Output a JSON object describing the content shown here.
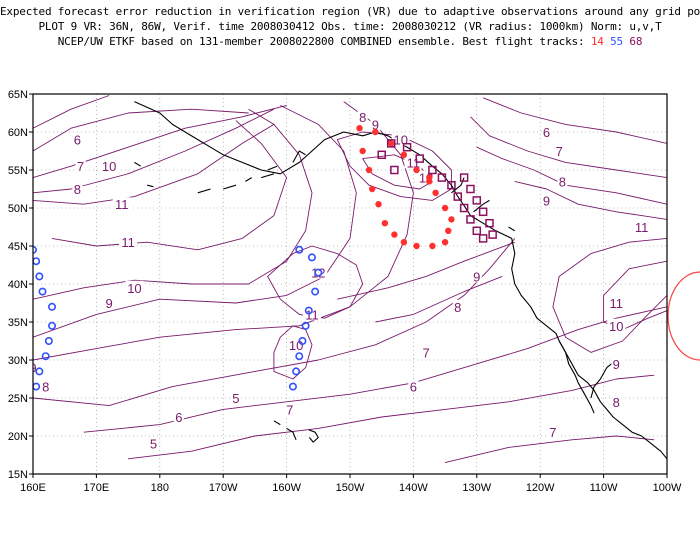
{
  "header": {
    "line1": "Expected forecast error reduction in verification region (VR) due to adaptive observations around any grid point.",
    "line2": "PLOT 9 VR: 36N, 86W, Verif. time 2008030412 Obs. time: 2008030212 (VR radius: 1000km) Norm: u,v,T",
    "line3_prefix": "NCEP/UW ETKF based on 131-member 2008022800 COMBINED ensemble.  Best flight tracks:",
    "track_a": "14",
    "track_b": "55",
    "track_c": "68"
  },
  "map": {
    "lon_range": [
      160,
      260
    ],
    "lat_range": [
      15,
      65
    ],
    "x_ticks": [
      "160E",
      "170E",
      "180",
      "170W",
      "160W",
      "150W",
      "140W",
      "130W",
      "120W",
      "110W",
      "100W"
    ],
    "y_ticks": [
      "15N",
      "20N",
      "25N",
      "30N",
      "35N",
      "40N",
      "45N",
      "50N",
      "55N",
      "60N",
      "65N"
    ],
    "grid": "dotted",
    "contour_color": "#7a1a6a",
    "contour_labels": [
      {
        "text": "6",
        "lon": 167,
        "lat": 59
      },
      {
        "text": "7",
        "lon": 167.5,
        "lat": 55.5
      },
      {
        "text": "8",
        "lon": 167,
        "lat": 52.5
      },
      {
        "text": "10",
        "lon": 172,
        "lat": 55.5
      },
      {
        "text": "11",
        "lon": 174,
        "lat": 50.5
      },
      {
        "text": "8",
        "lon": 148,
        "lat": 62
      },
      {
        "text": "9",
        "lon": 146,
        "lat": 61
      },
      {
        "text": "10",
        "lon": 142,
        "lat": 59
      },
      {
        "text": "11",
        "lon": 140,
        "lat": 56
      },
      {
        "text": "12",
        "lon": 138,
        "lat": 54
      },
      {
        "text": "11",
        "lon": 175,
        "lat": 45.5
      },
      {
        "text": "12",
        "lon": 155,
        "lat": 41.5
      },
      {
        "text": "10",
        "lon": 176,
        "lat": 39.5
      },
      {
        "text": "9",
        "lon": 172,
        "lat": 37.5
      },
      {
        "text": "11",
        "lon": 156,
        "lat": 36
      },
      {
        "text": "10",
        "lon": 158.5,
        "lat": 32
      },
      {
        "text": "9",
        "lon": 160,
        "lat": 29
      },
      {
        "text": "8",
        "lon": 162,
        "lat": 26.5
      },
      {
        "text": "7",
        "lon": 159.5,
        "lat": 23.5
      },
      {
        "text": "5",
        "lon": 192,
        "lat": 25
      },
      {
        "text": "6",
        "lon": 183,
        "lat": 22.5
      },
      {
        "text": "5",
        "lon": 179,
        "lat": 19
      },
      {
        "text": "6",
        "lon": 119,
        "lat": 60
      },
      {
        "text": "7",
        "lon": 117,
        "lat": 57.5
      },
      {
        "text": "8",
        "lon": 116.5,
        "lat": 53.5
      },
      {
        "text": "9",
        "lon": 119,
        "lat": 51
      },
      {
        "text": "11",
        "lon": 104,
        "lat": 47.5
      },
      {
        "text": "9",
        "lon": 130,
        "lat": 41
      },
      {
        "text": "8",
        "lon": 133,
        "lat": 37
      },
      {
        "text": "11",
        "lon": 108,
        "lat": 37.5
      },
      {
        "text": "10",
        "lon": 108,
        "lat": 34.5
      },
      {
        "text": "9",
        "lon": 108,
        "lat": 29.5
      },
      {
        "text": "8",
        "lon": 108,
        "lat": 24.5
      },
      {
        "text": "7",
        "lon": 138,
        "lat": 31
      },
      {
        "text": "6",
        "lon": 140,
        "lat": 26.5
      },
      {
        "text": "7",
        "lon": 118,
        "lat": 20.5
      }
    ],
    "track_colors": {
      "a": "#ff3030",
      "b": "#3050ff",
      "c": "#8a1060"
    },
    "track_a_points": [
      [
        148.5,
        60.5
      ],
      [
        146,
        60
      ],
      [
        143.5,
        58.5
      ],
      [
        141.5,
        57
      ],
      [
        139.5,
        55
      ],
      [
        137.5,
        53.5
      ],
      [
        148,
        57.5
      ],
      [
        147,
        55
      ],
      [
        146.5,
        52.5
      ],
      [
        145.5,
        50.5
      ],
      [
        144.5,
        48
      ],
      [
        143,
        46.5
      ],
      [
        141.5,
        45.5
      ],
      [
        139.5,
        45
      ],
      [
        137,
        45
      ],
      [
        135,
        45.5
      ],
      [
        134.5,
        47
      ],
      [
        134,
        48.5
      ],
      [
        135,
        50
      ],
      [
        136.5,
        52
      ],
      [
        137.5,
        54
      ]
    ],
    "track_b_points": [
      [
        160,
        44.5
      ],
      [
        158,
        44.5
      ],
      [
        156,
        43.5
      ],
      [
        155,
        41.5
      ],
      [
        155.5,
        39
      ],
      [
        156.5,
        36.5
      ],
      [
        157,
        34.5
      ],
      [
        157.5,
        32.5
      ],
      [
        158,
        30.5
      ],
      [
        158.5,
        28.5
      ],
      [
        159,
        26.5
      ],
      [
        160.5,
        26.5
      ],
      [
        161,
        28.5
      ],
      [
        162,
        30.5
      ],
      [
        162.5,
        32.5
      ],
      [
        163,
        34.5
      ],
      [
        163,
        37
      ],
      [
        161.5,
        39
      ],
      [
        161,
        41
      ],
      [
        160.5,
        43
      ]
    ],
    "track_c_points": [
      [
        143.5,
        58.5
      ],
      [
        141,
        58
      ],
      [
        139,
        56.5
      ],
      [
        137,
        55
      ],
      [
        135.5,
        54
      ],
      [
        134,
        53
      ],
      [
        133,
        51.5
      ],
      [
        132,
        50
      ],
      [
        131,
        48.5
      ],
      [
        130,
        47
      ],
      [
        129,
        46
      ],
      [
        127.5,
        46.5
      ],
      [
        128,
        48
      ],
      [
        129,
        49.5
      ],
      [
        130,
        51
      ],
      [
        131,
        52.5
      ],
      [
        132,
        54
      ],
      [
        145,
        57
      ],
      [
        143,
        55
      ]
    ],
    "coastlines": [
      [
        [
          176,
          64
        ],
        [
          180,
          62.5
        ],
        [
          182,
          61
        ],
        [
          186,
          59
        ],
        [
          188,
          58
        ],
        [
          190,
          57
        ],
        [
          193,
          56
        ],
        [
          196,
          55
        ],
        [
          199,
          54.5
        ],
        [
          202,
          56
        ],
        [
          204,
          57.5
        ],
        [
          206,
          59
        ],
        [
          209,
          60
        ],
        [
          212,
          59.5
        ],
        [
          214,
          60
        ],
        [
          216,
          59.5
        ],
        [
          218,
          58.5
        ],
        [
          221,
          57
        ],
        [
          223,
          55.5
        ],
        [
          224.5,
          54.5
        ],
        [
          226,
          53
        ],
        [
          227,
          51.5
        ],
        [
          228,
          50.3
        ],
        [
          229,
          49
        ],
        [
          231,
          48
        ],
        [
          233,
          47
        ],
        [
          235.5,
          46
        ],
        [
          236,
          44
        ],
        [
          235.5,
          42
        ],
        [
          236,
          40
        ],
        [
          237,
          38.5
        ],
        [
          238.5,
          37
        ],
        [
          239.5,
          35.5
        ],
        [
          241,
          34.5
        ],
        [
          242.5,
          33.5
        ],
        [
          243,
          32.5
        ],
        [
          244,
          31
        ],
        [
          245,
          29.5
        ],
        [
          246,
          28
        ],
        [
          247.5,
          27
        ],
        [
          248.5,
          26
        ],
        [
          249.5,
          24.5
        ],
        [
          250.5,
          23.5
        ],
        [
          251.5,
          22.5
        ],
        [
          253,
          21.5
        ],
        [
          254.5,
          20.5
        ],
        [
          256,
          20
        ],
        [
          257.5,
          19
        ],
        [
          259,
          18
        ],
        [
          260,
          17
        ]
      ],
      [
        [
          243,
          32.5
        ],
        [
          244,
          31
        ],
        [
          244.5,
          29.5
        ],
        [
          245.5,
          28
        ],
        [
          246,
          27
        ],
        [
          247,
          25.5
        ],
        [
          248,
          24
        ],
        [
          248.5,
          23
        ]
      ],
      [
        [
          252,
          30
        ],
        [
          250.5,
          29
        ],
        [
          249.5,
          27.5
        ],
        [
          248.5,
          26.5
        ],
        [
          248,
          25
        ]
      ],
      [
        [
          198,
          22
        ],
        [
          199,
          21.5
        ]
      ],
      [
        [
          200,
          21
        ],
        [
          201,
          20.5
        ],
        [
          201.5,
          19.5
        ]
      ],
      [
        [
          203.5,
          20.8
        ],
        [
          204.5,
          20.5
        ],
        [
          205,
          19.8
        ],
        [
          204.2,
          19.2
        ],
        [
          203.6,
          19.8
        ]
      ],
      [
        [
          176,
          56
        ],
        [
          177,
          55.5
        ]
      ],
      [
        [
          186,
          52
        ],
        [
          188,
          52.5
        ]
      ],
      [
        [
          190,
          52.5
        ],
        [
          192,
          53
        ]
      ],
      [
        [
          196,
          54
        ],
        [
          198,
          54.5
        ]
      ],
      [
        [
          201,
          56
        ],
        [
          202,
          57.5
        ],
        [
          203,
          57
        ]
      ],
      [
        [
          226,
          52
        ],
        [
          227.5,
          53
        ],
        [
          228,
          54
        ]
      ],
      [
        [
          229.5,
          49.5
        ],
        [
          231,
          50.5
        ],
        [
          232,
          51
        ]
      ],
      [
        [
          235,
          47.5
        ],
        [
          236,
          47
        ]
      ],
      [
        [
          178,
          53
        ],
        [
          179,
          52.8
        ]
      ],
      [
        [
          193.5,
          53.5
        ],
        [
          194.5,
          54
        ]
      ],
      [
        [
          197,
          55
        ],
        [
          198.5,
          55.5
        ]
      ]
    ]
  }
}
